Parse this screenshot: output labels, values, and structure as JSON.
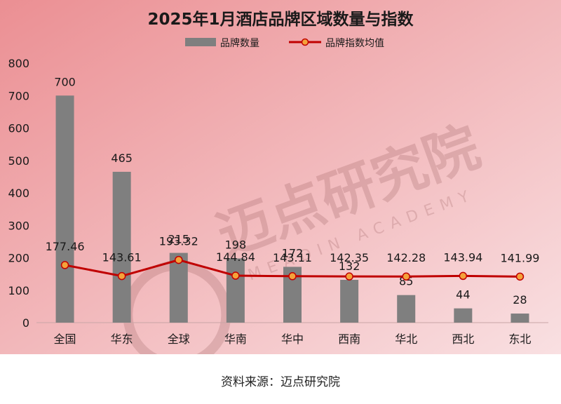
{
  "chart_data": {
    "type": "bar",
    "title": "2025年1月酒店品牌区域数量与指数",
    "categories": [
      "全国",
      "华东",
      "全球",
      "华南",
      "华中",
      "西南",
      "华北",
      "西北",
      "东北"
    ],
    "series": [
      {
        "name": "品牌数量",
        "kind": "bar",
        "values": [
          700,
          465,
          215,
          198,
          172,
          132,
          85,
          44,
          28
        ],
        "color": "#7f7f7f"
      },
      {
        "name": "品牌指数均值",
        "kind": "line",
        "values": [
          177.46,
          143.61,
          193.32,
          144.84,
          143.11,
          142.35,
          142.28,
          143.94,
          141.99
        ],
        "color": "#c00000",
        "marker_color": "#f4a23a"
      }
    ],
    "y_ticks": [
      "0",
      "100",
      "200",
      "300",
      "400",
      "500",
      "600",
      "700",
      "800"
    ],
    "ylim": [
      0,
      800
    ],
    "legend_position": "top-center",
    "grid": false,
    "watermark": {
      "cn": "迈点研究院",
      "en": "MEADIN ACADEMY"
    },
    "background_colors": [
      "#eb8f93",
      "#f9e0e2"
    ]
  },
  "footer": {
    "source": "资料来源：迈点研究院"
  }
}
